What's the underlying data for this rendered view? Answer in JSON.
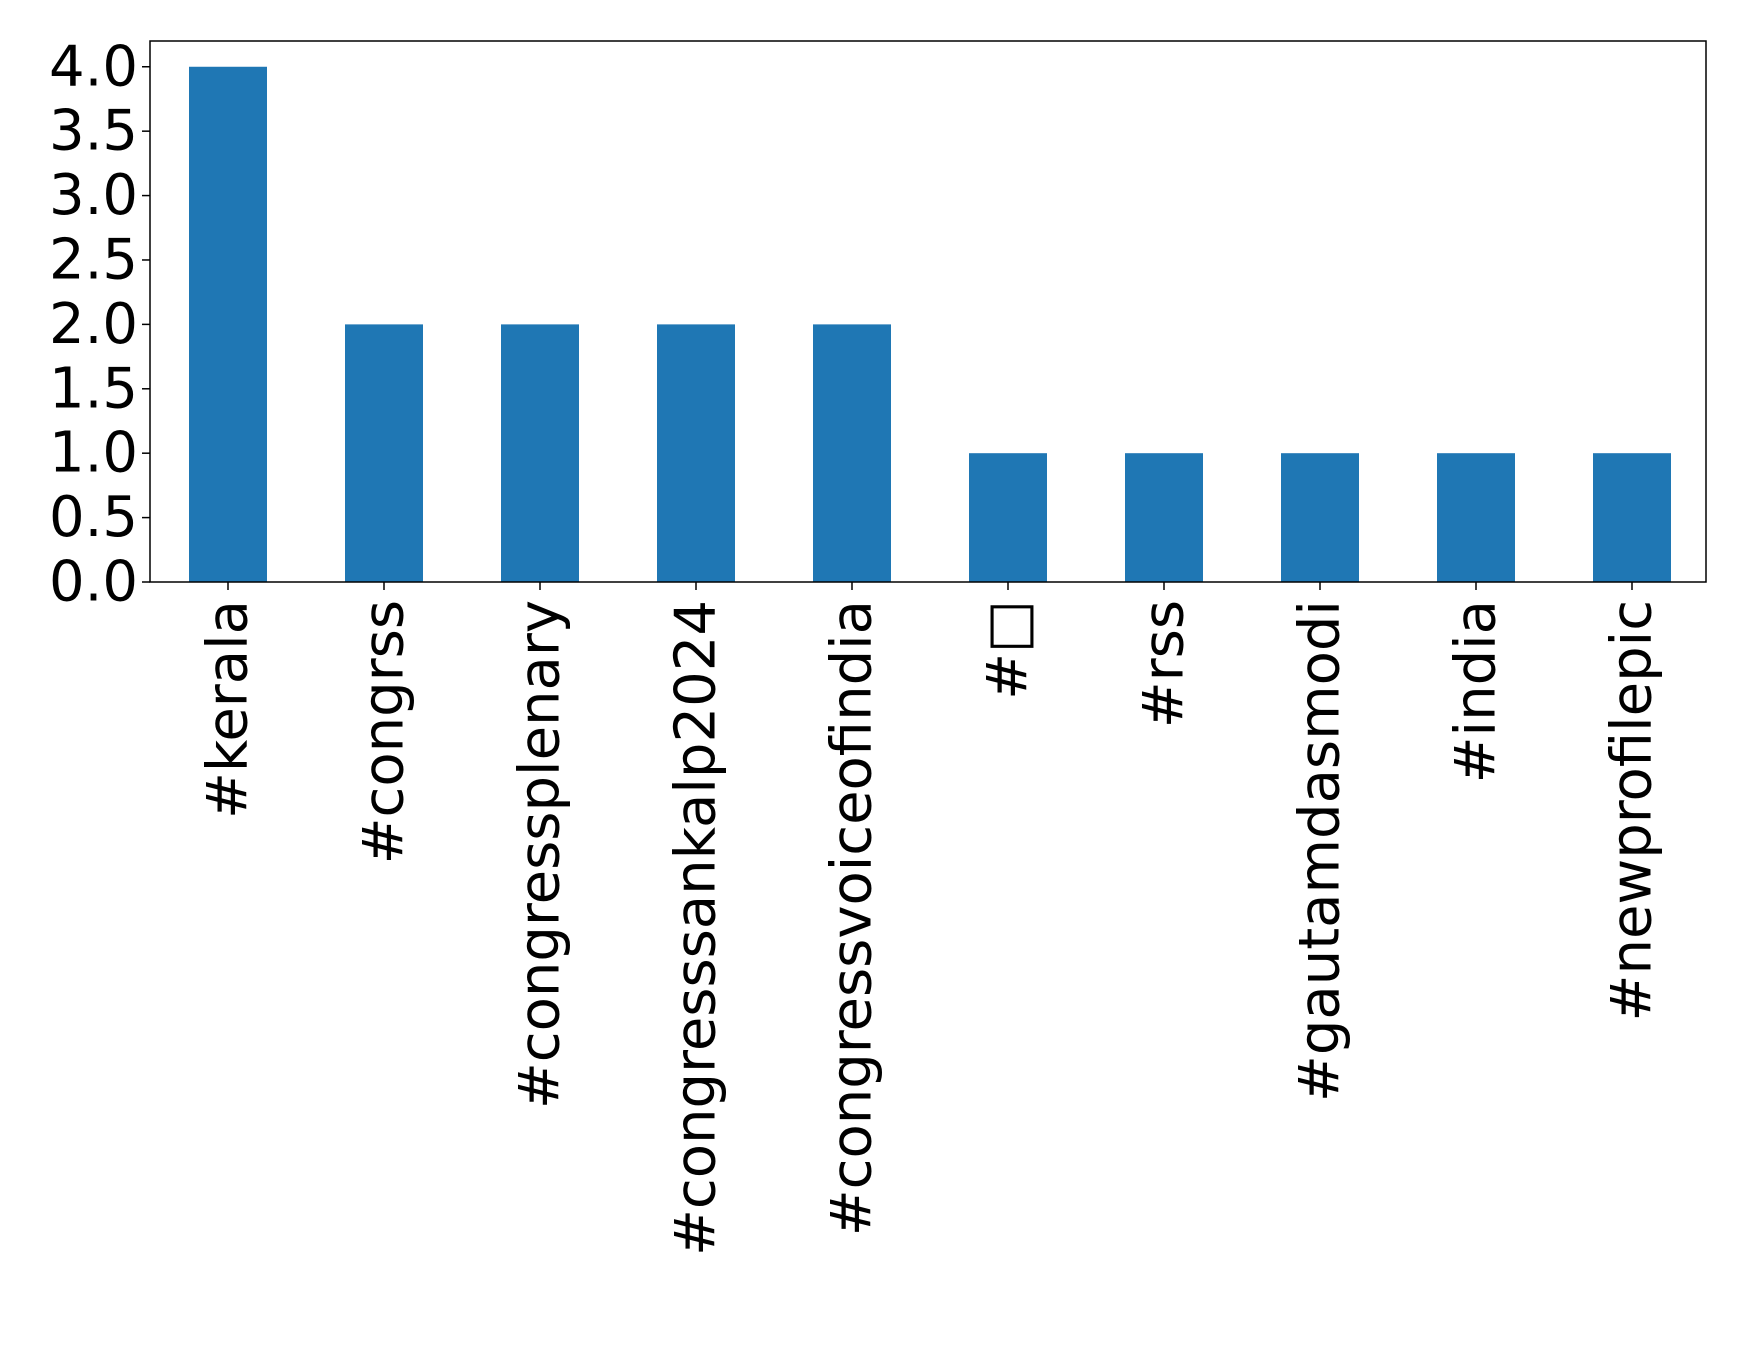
{
  "chart_data": {
    "type": "bar",
    "title": "",
    "xlabel": "",
    "ylabel": "",
    "categories": [
      "#kerala",
      "#congrss",
      "#congressplenary",
      "#congresssankalp2024",
      "#congressvoiceofindia",
      "#□",
      "#rss",
      "#gautamdasmodi",
      "#india",
      "#newprofilepic"
    ],
    "values": [
      4,
      2,
      2,
      2,
      2,
      1,
      1,
      1,
      1,
      1
    ],
    "ylim": [
      0,
      4.2
    ],
    "yticks": [
      0.0,
      0.5,
      1.0,
      1.5,
      2.0,
      2.5,
      3.0,
      3.5,
      4.0
    ],
    "ytick_labels": [
      "0.0",
      "0.5",
      "1.0",
      "1.5",
      "2.0",
      "2.5",
      "3.0",
      "3.5",
      "4.0"
    ],
    "bar_color": "#1f77b4",
    "grid": false,
    "legend": "none"
  }
}
